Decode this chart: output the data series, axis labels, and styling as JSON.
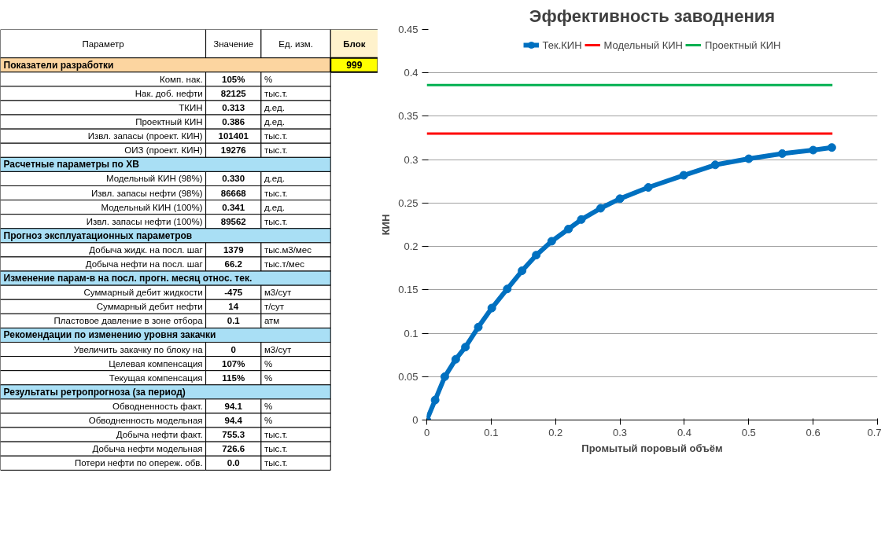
{
  "chart_data": [
    {
      "type": "other",
      "annotations": [
        "Параметр",
        "Значение",
        "Ед. изм.",
        "Блок"
      ]
    },
    {
      "type": "other",
      "title": "Показатели разработки",
      "subtitle": "999",
      "annotations": [
        "Комп. нак.",
        "105%",
        "%",
        "Нак. доб. нефти",
        "82125",
        "тыс.т.",
        "ТКИН",
        "0.313",
        "д.ед.",
        "Проектный КИН",
        "0.386",
        "д.ед.",
        "Извл. запасы (проект. КИН)",
        "101401",
        "тыс.т.",
        "ОИЗ (проект. КИН)",
        "19276",
        "тыс.т."
      ]
    },
    {
      "type": "other",
      "title": "Расчетные параметры по ХВ",
      "annotations": [
        "Модельный КИН (98%)",
        "0.330",
        "д.ед.",
        "Извл. запасы нефти (98%)",
        "86668",
        "тыс.т.",
        "Модельный КИН (100%)",
        "0.341",
        "д.ед.",
        "Извл. запасы нефти (100%)",
        "89562",
        "тыс.т."
      ]
    },
    {
      "type": "other",
      "title": "Прогноз эксплуатационных параметров",
      "annotations": [
        "Добыча жидк. на посл. шаг",
        "1379",
        "тыс.м3/мес",
        "Добыча нефти на посл. шаг",
        "66.2",
        "тыс.т/мес"
      ]
    },
    {
      "type": "other",
      "title": "Изменение парам-в на посл. прогн. месяц относ. тек.",
      "annotations": [
        "Суммарный дебит жидкости",
        "-475",
        "м3/сут",
        "Суммарный дебит нефти",
        "14",
        "т/сут",
        "Пластовое давление в зоне отбора",
        "0.1",
        "атм"
      ]
    },
    {
      "type": "other",
      "title": "Рекомендации по изменению уровня закачки",
      "annotations": [
        "Увеличить закачку по блоку на",
        "0",
        "м3/сут",
        "Целевая компенсация",
        "107%",
        "%",
        "Текущая компенсация",
        "115%",
        "%"
      ]
    },
    {
      "type": "other",
      "title": "Результаты ретропрогноза (за период)",
      "annotations": [
        "Обводненность факт.",
        "94.1",
        "%",
        "Обводненность модельная",
        "94.4",
        "%",
        "Добыча нефти факт.",
        "755.3",
        "тыс.т.",
        "Добыча нефти модельная",
        "726.6",
        "тыс.т.",
        "Потери нефти по опереж. обв.",
        "0.0",
        "тыс.т."
      ]
    },
    {
      "type": "line",
      "title": "Эффективность заводнения",
      "xlabel": "Промытый поровый объём",
      "ylabel": "КИН",
      "xlim": [
        0,
        0.7
      ],
      "xticks": [
        0,
        0.1,
        0.2,
        0.3,
        0.4,
        0.5,
        0.6,
        0.7
      ],
      "ylim": [
        0,
        0.45
      ],
      "yticks": [
        0,
        0.05,
        0.1,
        0.15,
        0.2,
        0.25,
        0.3,
        0.35,
        0.4,
        0.45
      ],
      "grid": "y",
      "legend": "top",
      "marker": "circle",
      "series": [
        {
          "name": "Тек.КИН",
          "color": "#0070c0",
          "x": [
            0,
            0.013,
            0.028,
            0.045,
            0.06,
            0.08,
            0.101,
            0.125,
            0.148,
            0.17,
            0.194,
            0.22,
            0.24,
            0.27,
            0.3,
            0.344,
            0.399,
            0.448,
            0.5,
            0.552,
            0.6,
            0.629
          ],
          "values": [
            0,
            0.023,
            0.05,
            0.07,
            0.084,
            0.107,
            0.129,
            0.151,
            0.172,
            0.19,
            0.206,
            0.22,
            0.231,
            0.244,
            0.255,
            0.268,
            0.282,
            0.294,
            0.301,
            0.307,
            0.311,
            0.314
          ]
        },
        {
          "name": "Модельный КИН",
          "color": "#ff0000",
          "marker": "none",
          "x": [
            0,
            0.63
          ],
          "values": [
            0.33,
            0.33
          ]
        },
        {
          "name": "Проектный КИН",
          "color": "#00b050",
          "marker": "none",
          "x": [
            0,
            0.63
          ],
          "values": [
            0.386,
            0.386
          ]
        }
      ]
    }
  ]
}
